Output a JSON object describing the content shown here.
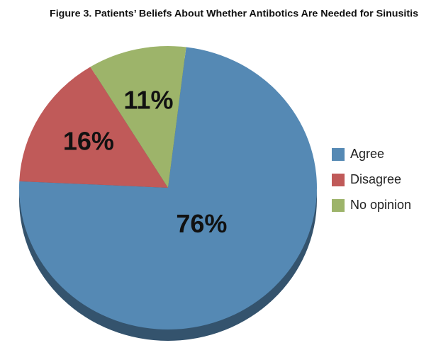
{
  "chart_data": {
    "type": "pie",
    "title": "Figure 3. Patients’ Beliefs About Whether Antibotics Are Needed for Sinusitis",
    "categories": [
      "Agree",
      "Disagree",
      "No opinion"
    ],
    "values": [
      76,
      16,
      11
    ],
    "value_labels": [
      "76%",
      "16%",
      "11%"
    ],
    "colors": [
      "#5589b4",
      "#c05a59",
      "#9db46a"
    ],
    "legend": "right"
  }
}
